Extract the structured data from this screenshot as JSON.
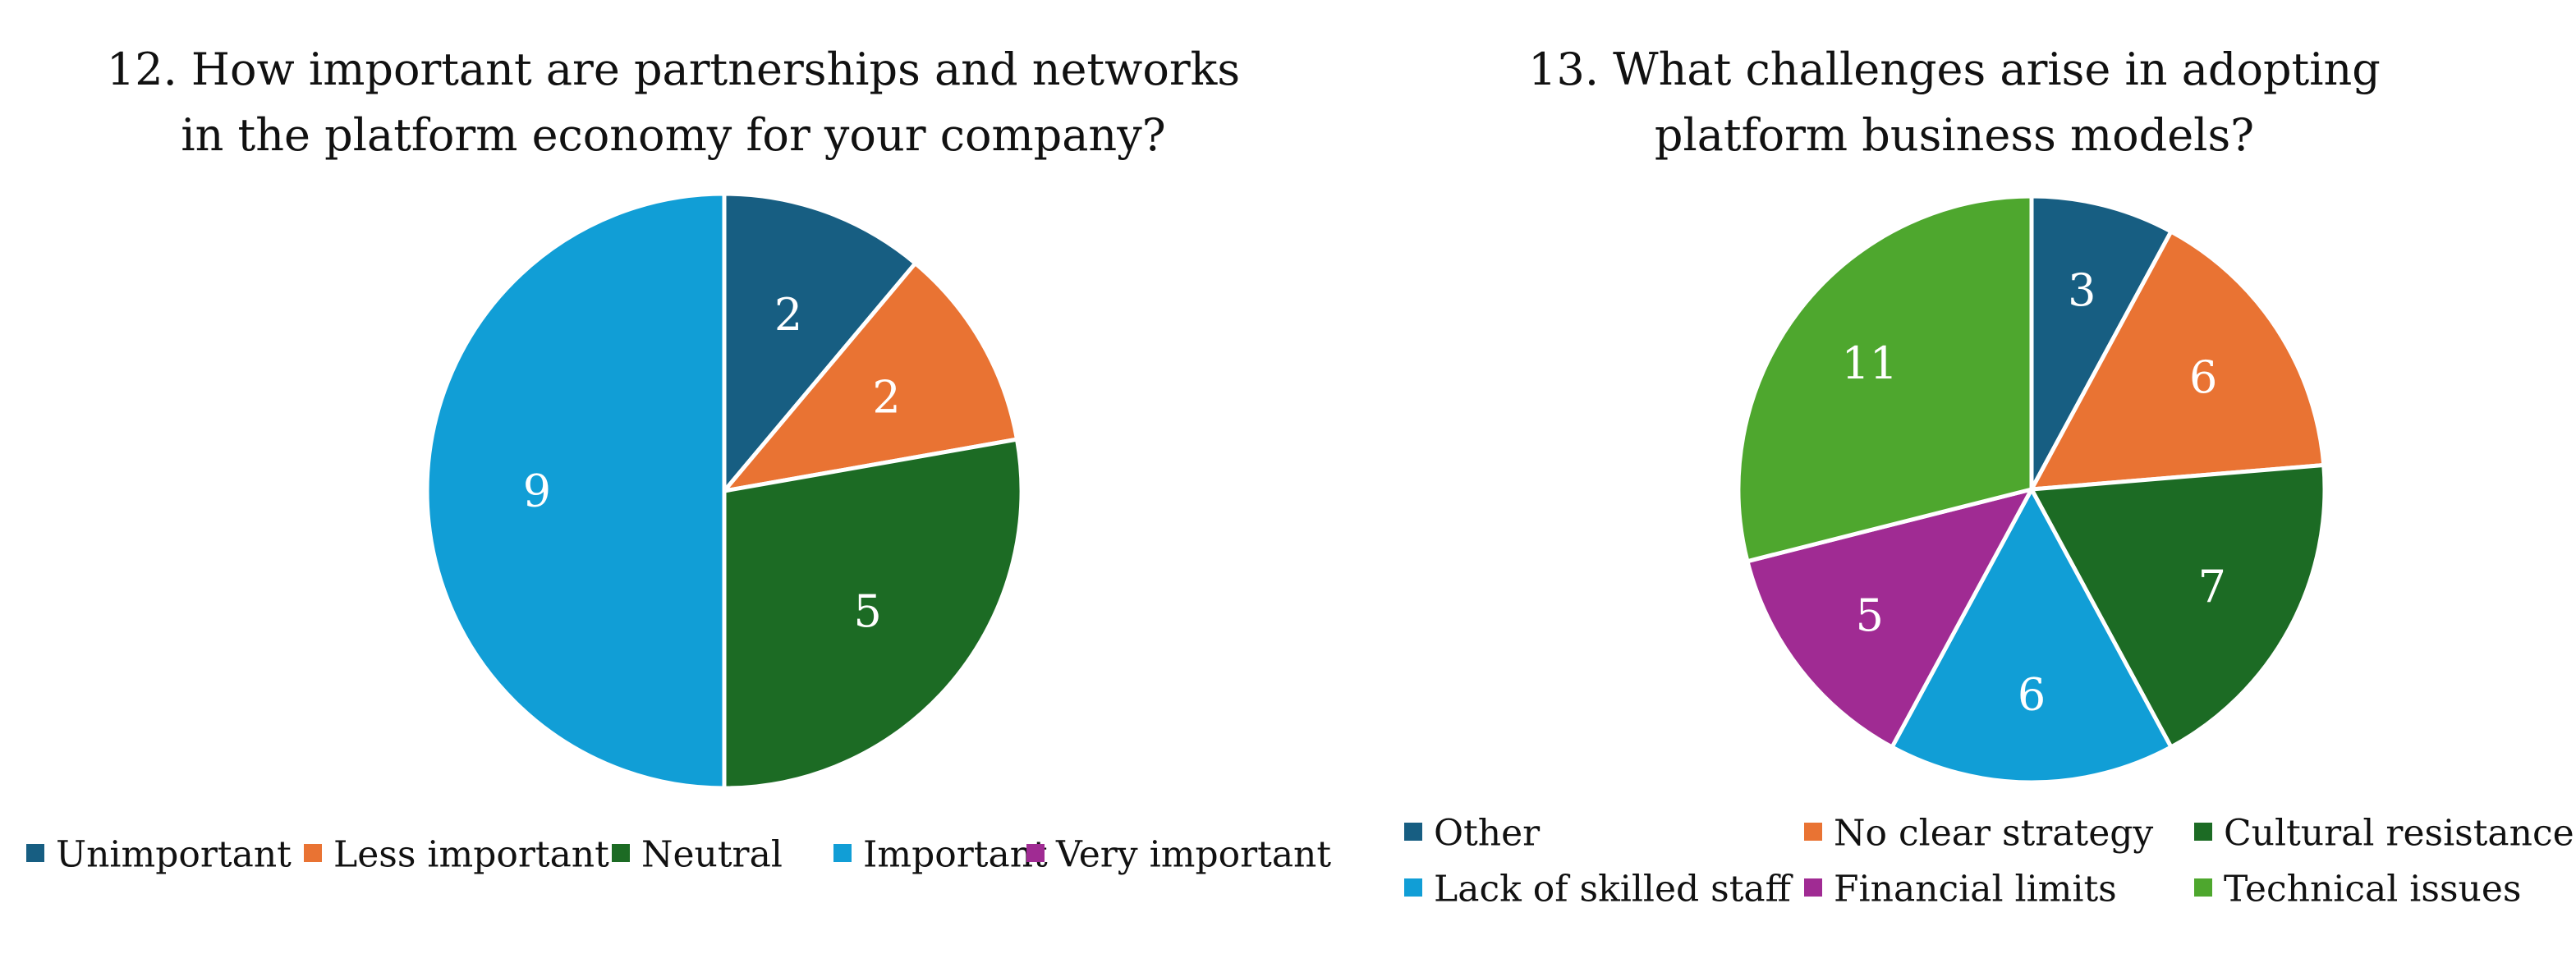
{
  "chart_data": [
    {
      "type": "pie",
      "title": "12. How important are partnerships and networks in the platform economy for your company?",
      "title_lines": [
        "12. How important are partnerships and networks",
        "in the platform economy for your company?"
      ],
      "categories": [
        "Unimportant",
        "Less important",
        "Neutral",
        "Important",
        "Very important"
      ],
      "values": [
        2,
        2,
        5,
        9,
        0
      ],
      "colors": [
        "#175E82",
        "#E97333",
        "#1C6B24",
        "#119ED6",
        "#A02B93"
      ],
      "legend_placement": "bottom"
    },
    {
      "type": "pie",
      "title": "13. What challenges arise in adopting platform business models?",
      "title_lines": [
        "13. What challenges arise in adopting",
        "platform business models?"
      ],
      "categories": [
        "Other",
        "No clear strategy",
        "Cultural resistance",
        "Lack of skilled staff",
        "Financial limits",
        "Technical issues"
      ],
      "values": [
        3,
        6,
        7,
        6,
        5,
        11
      ],
      "colors": [
        "#175E82",
        "#E97333",
        "#1C6B24",
        "#119ED6",
        "#A02B93",
        "#4EA72E"
      ],
      "legend_placement": "bottom"
    }
  ]
}
